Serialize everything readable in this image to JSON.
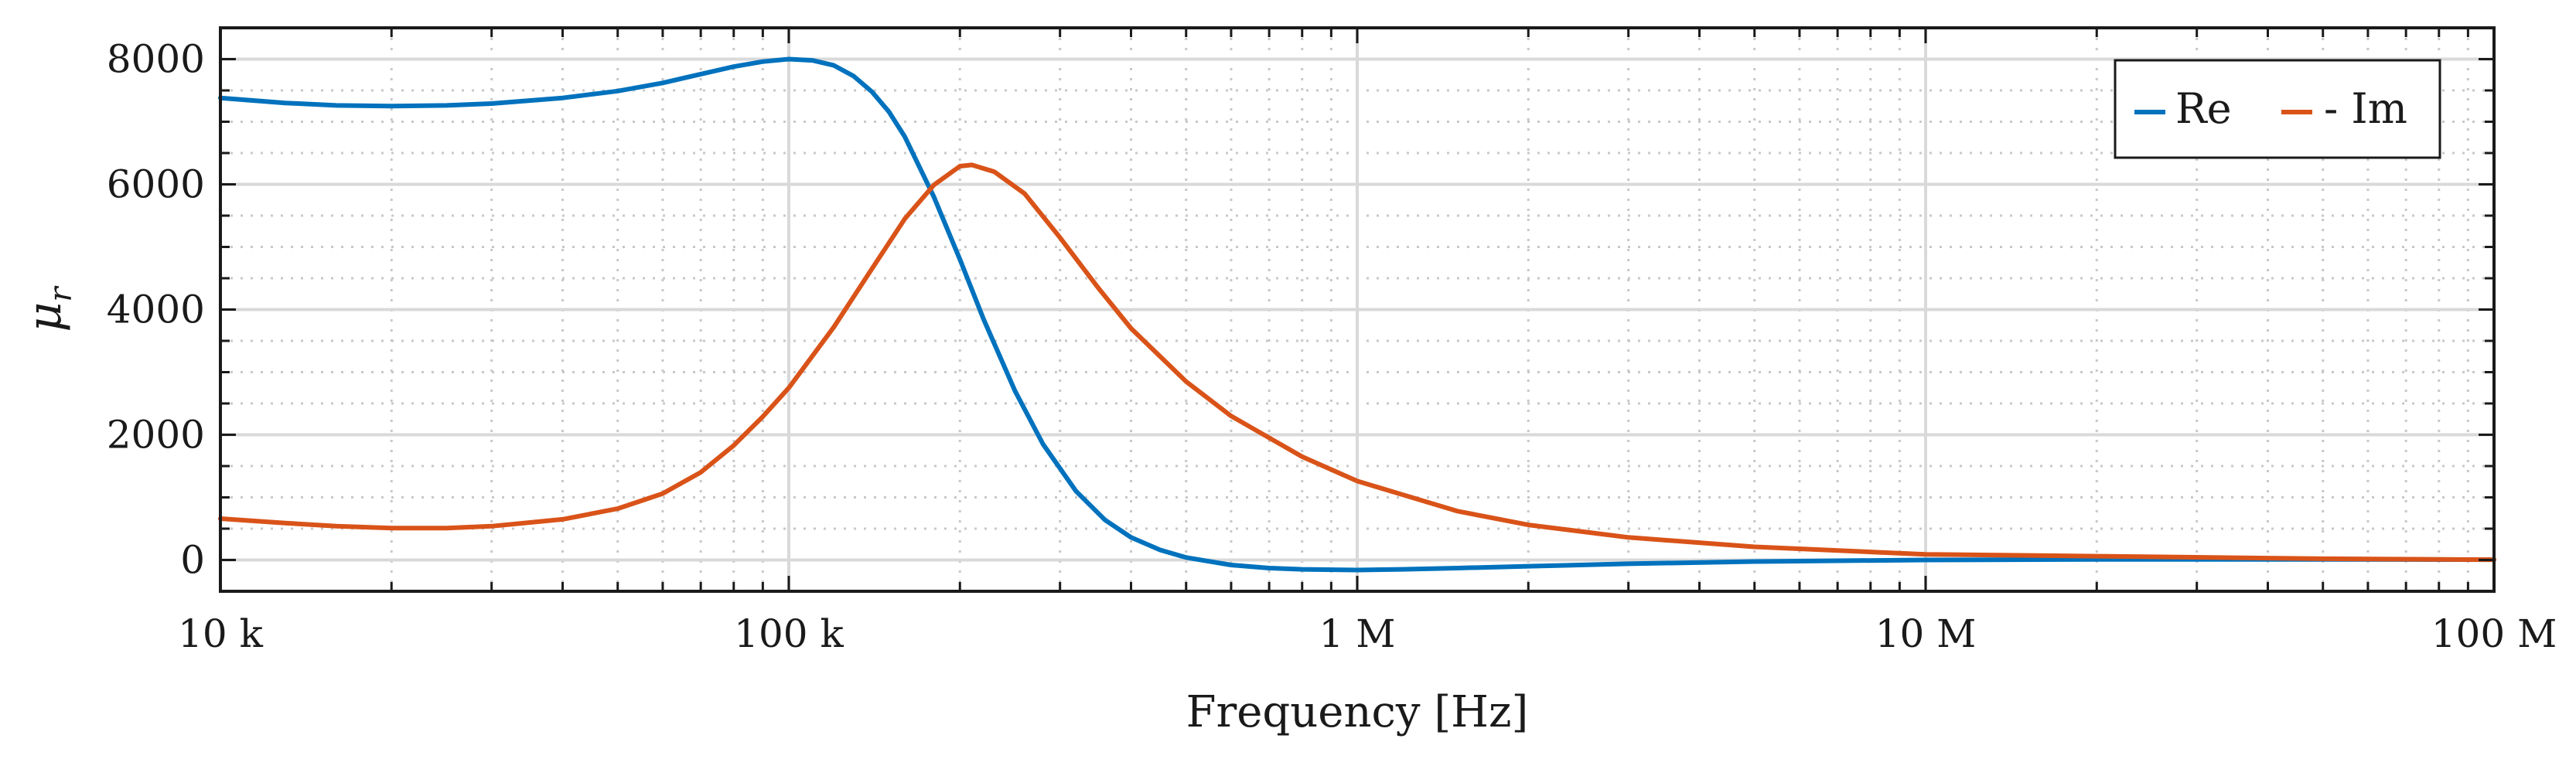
{
  "chart_data": {
    "type": "line",
    "xscale": "log",
    "xlabel": "Frequency [Hz]",
    "ylabel": "μ",
    "ylabel_subscript": "r",
    "xlim": [
      10000,
      100000000
    ],
    "ylim": [
      -500,
      8500
    ],
    "xticks": [
      {
        "value": 10000,
        "label": "10 k"
      },
      {
        "value": 100000,
        "label": "100 k"
      },
      {
        "value": 1000000,
        "label": "1 M"
      },
      {
        "value": 10000000,
        "label": "10 M"
      },
      {
        "value": 100000000,
        "label": "100 M"
      }
    ],
    "yticks": [
      {
        "value": 0,
        "label": "0"
      },
      {
        "value": 2000,
        "label": "2000"
      },
      {
        "value": 4000,
        "label": "4000"
      },
      {
        "value": 6000,
        "label": "6000"
      },
      {
        "value": 8000,
        "label": "8000"
      }
    ],
    "grid": true,
    "legend_position": "top-right",
    "series": [
      {
        "name": "Re",
        "color": "#0072BD",
        "x": [
          10000,
          13000,
          16000,
          20000,
          25000,
          30000,
          40000,
          50000,
          60000,
          70000,
          80000,
          90000,
          100000,
          110000,
          120000,
          130000,
          140000,
          150000,
          160000,
          180000,
          200000,
          220000,
          250000,
          280000,
          320000,
          360000,
          400000,
          450000,
          500000,
          600000,
          700000,
          800000,
          1000000,
          1200000,
          1500000,
          2000000,
          3000000,
          5000000,
          10000000,
          20000000,
          50000000,
          100000000
        ],
        "y": [
          7380,
          7300,
          7260,
          7250,
          7260,
          7290,
          7380,
          7490,
          7620,
          7760,
          7880,
          7960,
          8000,
          7980,
          7900,
          7730,
          7480,
          7160,
          6760,
          5800,
          4800,
          3850,
          2700,
          1850,
          1100,
          640,
          360,
          160,
          40,
          -80,
          -130,
          -150,
          -160,
          -150,
          -130,
          -100,
          -60,
          -25,
          0,
          10,
          10,
          5
        ]
      },
      {
        "name": "- Im",
        "color": "#D95319",
        "x": [
          10000,
          13000,
          16000,
          20000,
          25000,
          30000,
          40000,
          50000,
          60000,
          70000,
          80000,
          90000,
          100000,
          120000,
          140000,
          160000,
          180000,
          200000,
          210000,
          230000,
          260000,
          300000,
          350000,
          400000,
          500000,
          600000,
          800000,
          1000000,
          1500000,
          2000000,
          3000000,
          5000000,
          10000000,
          20000000,
          50000000,
          100000000
        ],
        "y": [
          660,
          590,
          540,
          510,
          510,
          540,
          650,
          820,
          1060,
          1400,
          1830,
          2290,
          2750,
          3720,
          4650,
          5450,
          5990,
          6290,
          6310,
          6200,
          5850,
          5150,
          4350,
          3700,
          2850,
          2300,
          1650,
          1260,
          780,
          560,
          360,
          210,
          90,
          60,
          20,
          5
        ]
      }
    ]
  }
}
